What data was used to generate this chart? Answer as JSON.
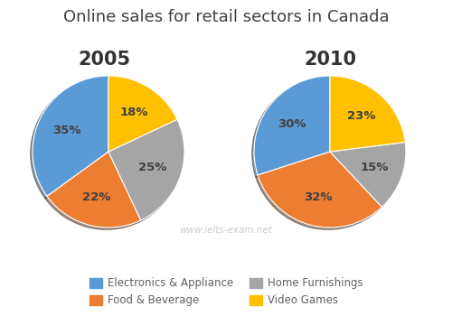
{
  "title": "Online sales for retail sectors in Canada",
  "title_fontsize": 13,
  "title_color": "#404040",
  "year1": "2005",
  "year2": "2010",
  "year_fontsize": 15,
  "year_color": "#333333",
  "values_2005": [
    35,
    22,
    25,
    18
  ],
  "values_2010": [
    30,
    32,
    15,
    23
  ],
  "colors": [
    "#5B9BD5",
    "#ED7D31",
    "#A5A5A5",
    "#FFC000"
  ],
  "shadow_colors": [
    "#4A7FAD",
    "#BE6425",
    "#848484",
    "#CCA000"
  ],
  "labels_2005": [
    "35%",
    "22%",
    "25%",
    "18%"
  ],
  "labels_2010": [
    "30%",
    "32%",
    "15%",
    "23%"
  ],
  "label_color": "#404040",
  "watermark": "www.ielts-exam.net",
  "watermark_color": "#CCCCCC",
  "legend_labels": [
    "Electronics & Appliance",
    "Food & Beverage",
    "Home Furnishings",
    "Video Games"
  ],
  "legend_fontsize": 8.5,
  "background_color": "#FFFFFF",
  "startangle_2005": 90,
  "startangle_2010": 90
}
